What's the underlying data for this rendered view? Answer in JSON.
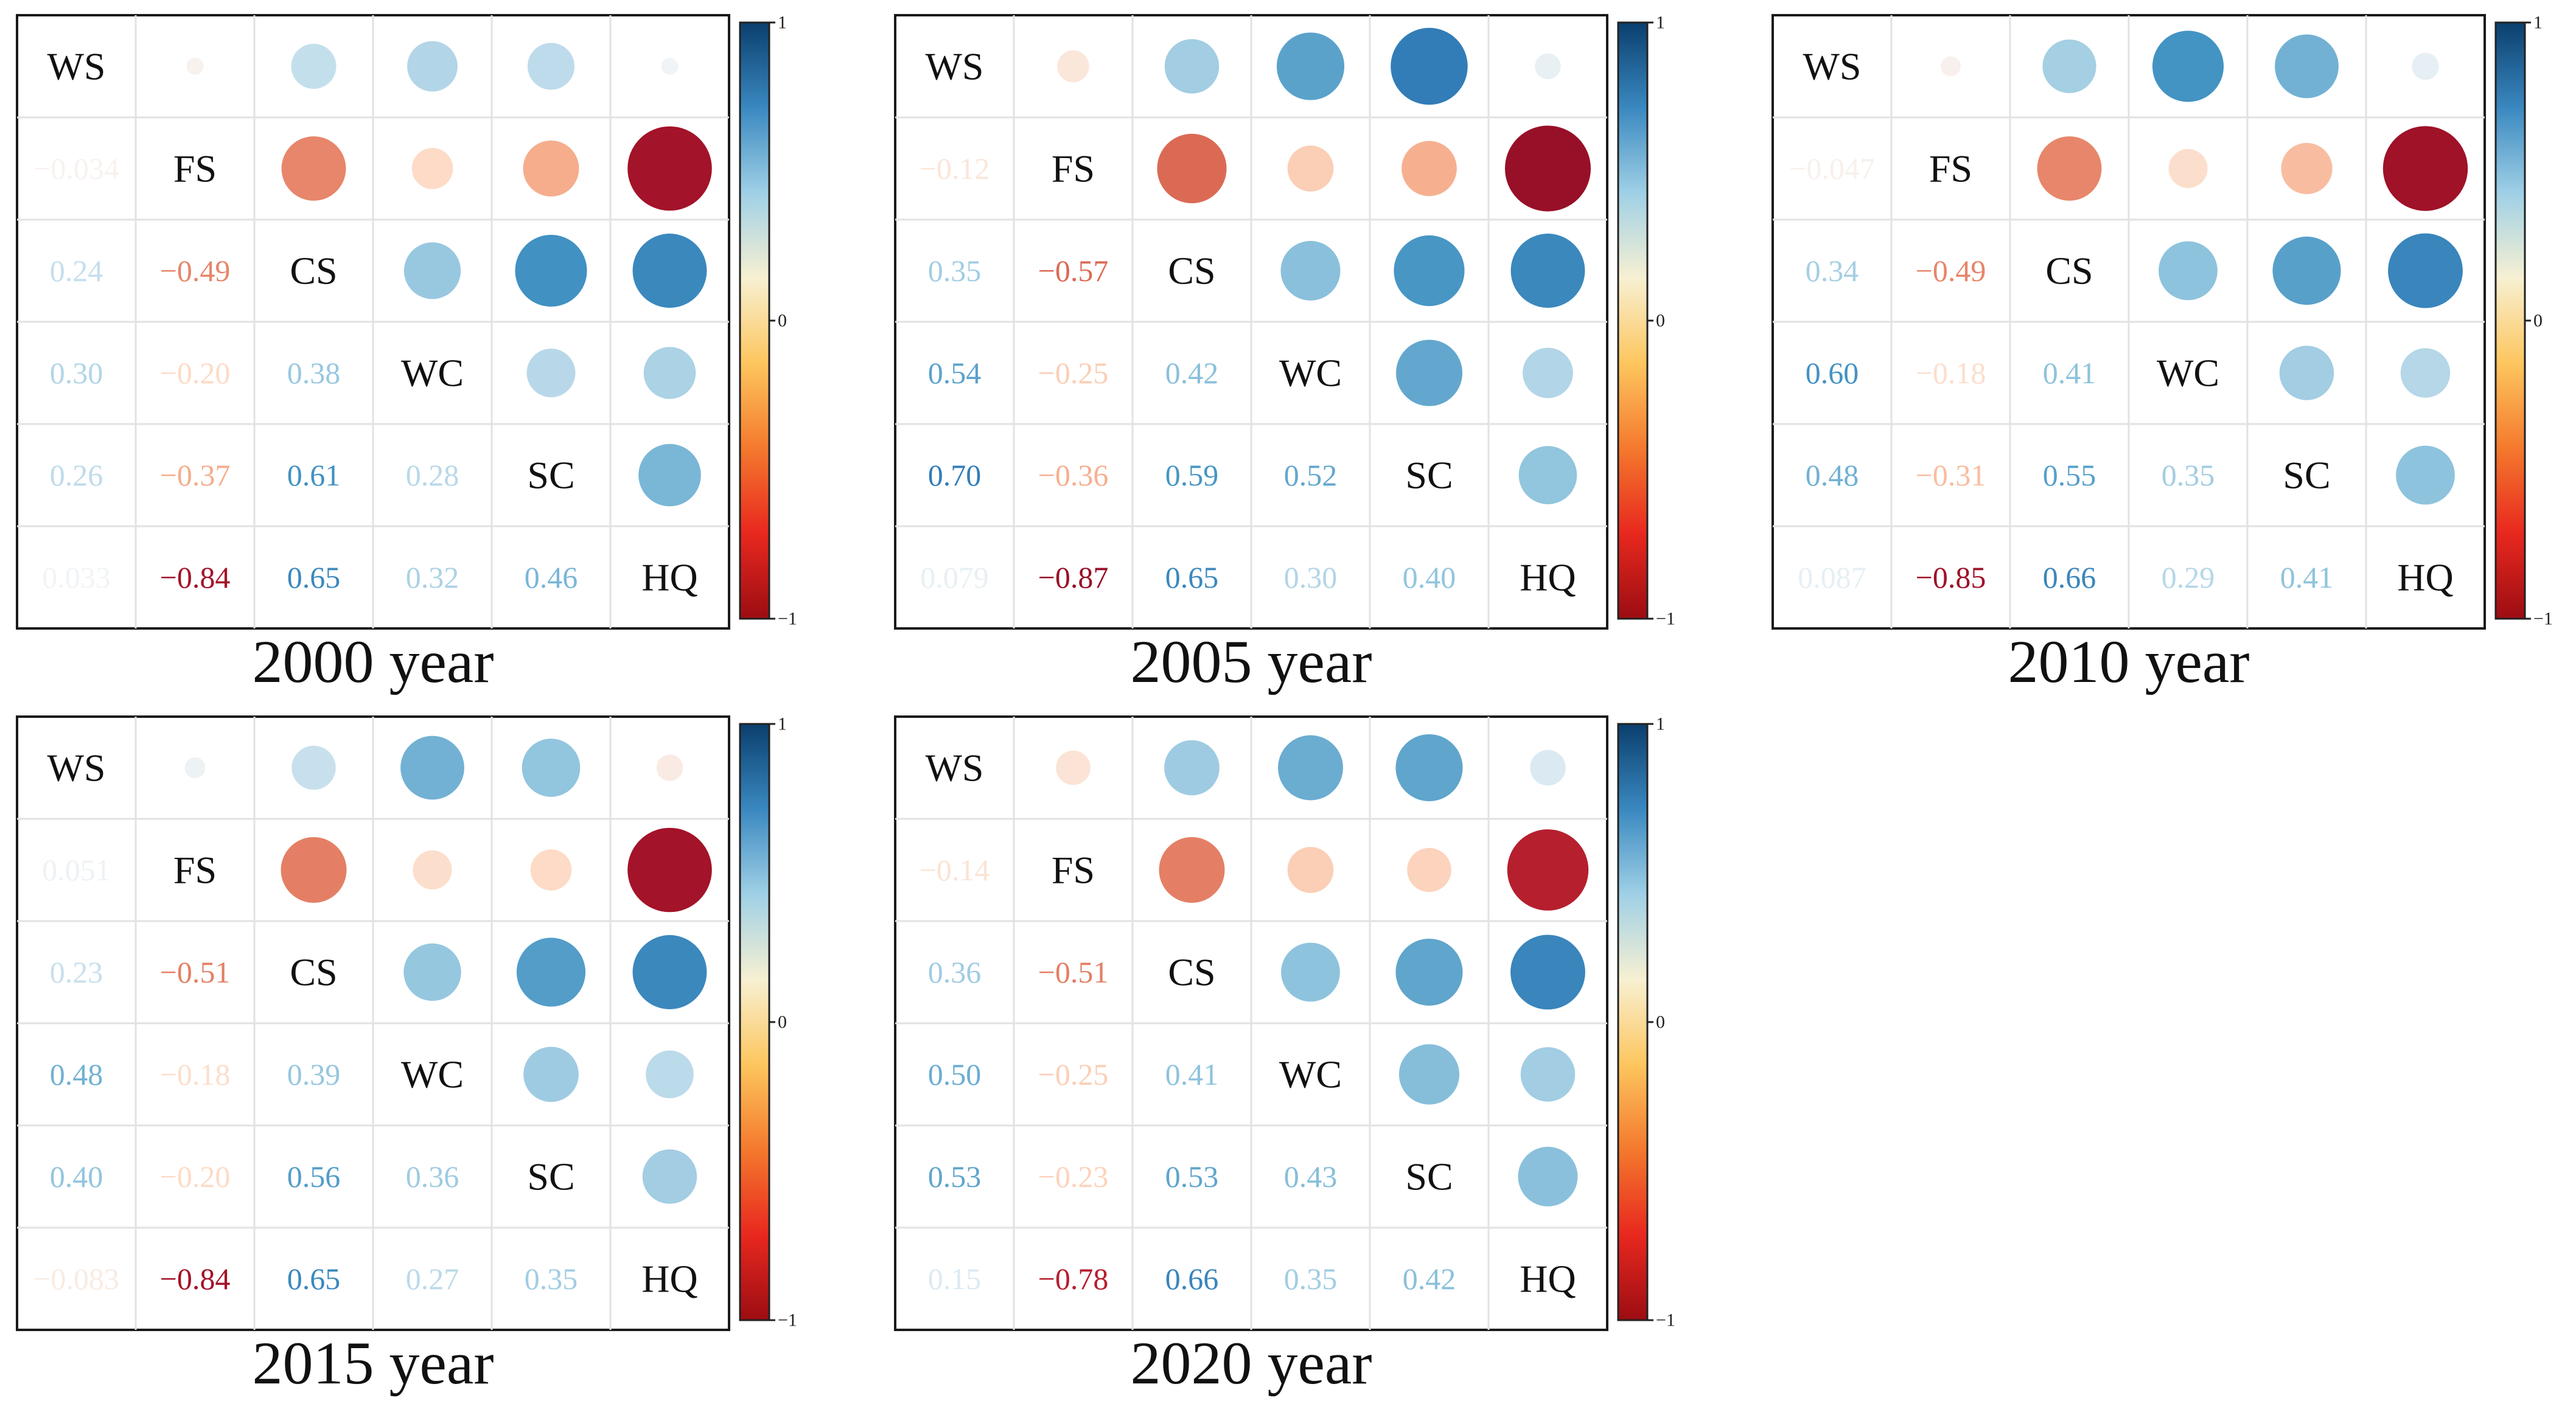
{
  "chart_data": [
    {
      "type": "heatmap",
      "title": "2000 year",
      "variables": [
        "WS",
        "FS",
        "CS",
        "WC",
        "SC",
        "HQ"
      ],
      "correlations": [
        [
          1,
          -0.034,
          0.24,
          0.3,
          0.26,
          0.033
        ],
        [
          -0.034,
          1,
          -0.49,
          -0.2,
          -0.37,
          -0.84
        ],
        [
          0.24,
          -0.49,
          1,
          0.38,
          0.61,
          0.65
        ],
        [
          0.3,
          -0.2,
          0.38,
          1,
          0.28,
          0.32
        ],
        [
          0.26,
          -0.37,
          0.61,
          0.28,
          1,
          0.46
        ],
        [
          0.033,
          -0.84,
          0.65,
          0.32,
          0.46,
          1
        ]
      ],
      "lower_labels": [
        [
          "−0.034"
        ],
        [
          "0.24",
          "−0.49"
        ],
        [
          "0.30",
          "−0.20",
          "0.38"
        ],
        [
          "0.26",
          "−0.37",
          "0.61",
          "0.28"
        ],
        [
          "0.033",
          "−0.84",
          "0.65",
          "0.32",
          "0.46"
        ]
      ],
      "colorbar": {
        "min": -1,
        "max": 1,
        "ticks": [
          "1",
          "0",
          "−1"
        ]
      }
    },
    {
      "type": "heatmap",
      "title": "2005 year",
      "variables": [
        "WS",
        "FS",
        "CS",
        "WC",
        "SC",
        "HQ"
      ],
      "correlations": [
        [
          1,
          -0.12,
          0.35,
          0.54,
          0.7,
          0.079
        ],
        [
          -0.12,
          1,
          -0.57,
          -0.25,
          -0.36,
          -0.87
        ],
        [
          0.35,
          -0.57,
          1,
          0.42,
          0.59,
          0.65
        ],
        [
          0.54,
          -0.25,
          0.42,
          1,
          0.52,
          0.3
        ],
        [
          0.7,
          -0.36,
          0.59,
          0.52,
          1,
          0.4
        ],
        [
          0.079,
          -0.87,
          0.65,
          0.3,
          0.4,
          1
        ]
      ],
      "lower_labels": [
        [
          "−0.12"
        ],
        [
          "0.35",
          "−0.57"
        ],
        [
          "0.54",
          "−0.25",
          "0.42"
        ],
        [
          "0.70",
          "−0.36",
          "0.59",
          "0.52"
        ],
        [
          "0.079",
          "−0.87",
          "0.65",
          "0.30",
          "0.40"
        ]
      ],
      "colorbar": {
        "min": -1,
        "max": 1,
        "ticks": [
          "1",
          "0",
          "−1"
        ]
      }
    },
    {
      "type": "heatmap",
      "title": "2010 year",
      "variables": [
        "WS",
        "FS",
        "CS",
        "WC",
        "SC",
        "HQ"
      ],
      "correlations": [
        [
          1,
          -0.047,
          0.34,
          0.6,
          0.48,
          0.087
        ],
        [
          -0.047,
          1,
          -0.49,
          -0.18,
          -0.31,
          -0.85
        ],
        [
          0.34,
          -0.49,
          1,
          0.41,
          0.55,
          0.66
        ],
        [
          0.6,
          -0.18,
          0.41,
          1,
          0.35,
          0.29
        ],
        [
          0.48,
          -0.31,
          0.55,
          0.35,
          1,
          0.41
        ],
        [
          0.087,
          -0.85,
          0.66,
          0.29,
          0.41,
          1
        ]
      ],
      "lower_labels": [
        [
          "−0.047"
        ],
        [
          "0.34",
          "−0.49"
        ],
        [
          "0.60",
          "−0.18",
          "0.41"
        ],
        [
          "0.48",
          "−0.31",
          "0.55",
          "0.35"
        ],
        [
          "0.087",
          "−0.85",
          "0.66",
          "0.29",
          "0.41"
        ]
      ],
      "colorbar": {
        "min": -1,
        "max": 1,
        "ticks": [
          "1",
          "0",
          "−1"
        ]
      }
    },
    {
      "type": "heatmap",
      "title": "2015 year",
      "variables": [
        "WS",
        "FS",
        "CS",
        "WC",
        "SC",
        "HQ"
      ],
      "correlations": [
        [
          1,
          0.051,
          0.23,
          0.48,
          0.4,
          -0.083
        ],
        [
          0.051,
          1,
          -0.51,
          -0.18,
          -0.2,
          -0.84
        ],
        [
          0.23,
          -0.51,
          1,
          0.39,
          0.56,
          0.65
        ],
        [
          0.48,
          -0.18,
          0.39,
          1,
          0.36,
          0.27
        ],
        [
          0.4,
          -0.2,
          0.56,
          0.36,
          1,
          0.35
        ],
        [
          -0.083,
          -0.84,
          0.65,
          0.27,
          0.35,
          1
        ]
      ],
      "lower_labels": [
        [
          "0.051"
        ],
        [
          "0.23",
          "−0.51"
        ],
        [
          "0.48",
          "−0.18",
          "0.39"
        ],
        [
          "0.40",
          "−0.20",
          "0.56",
          "0.36"
        ],
        [
          "−0.083",
          "−0.84",
          "0.65",
          "0.27",
          "0.35"
        ]
      ],
      "colorbar": {
        "min": -1,
        "max": 1,
        "ticks": [
          "1",
          "0",
          "−1"
        ]
      }
    },
    {
      "type": "heatmap",
      "title": "2020 year",
      "variables": [
        "WS",
        "FS",
        "CS",
        "WC",
        "SC",
        "HQ"
      ],
      "correlations": [
        [
          1,
          -0.14,
          0.36,
          0.5,
          0.53,
          0.15
        ],
        [
          -0.14,
          1,
          -0.51,
          -0.25,
          -0.23,
          -0.78
        ],
        [
          0.36,
          -0.51,
          1,
          0.41,
          0.53,
          0.66
        ],
        [
          0.5,
          -0.25,
          0.41,
          1,
          0.43,
          0.35
        ],
        [
          0.53,
          -0.23,
          0.53,
          0.43,
          1,
          0.42
        ],
        [
          0.15,
          -0.78,
          0.66,
          0.35,
          0.42,
          1
        ]
      ],
      "lower_labels": [
        [
          "−0.14"
        ],
        [
          "0.36",
          "−0.51"
        ],
        [
          "0.50",
          "−0.25",
          "0.41"
        ],
        [
          "0.53",
          "−0.23",
          "0.53",
          "0.43"
        ],
        [
          "0.15",
          "−0.78",
          "0.66",
          "0.35",
          "0.42"
        ]
      ],
      "colorbar": {
        "min": -1,
        "max": 1,
        "ticks": [
          "1",
          "0",
          "−1"
        ]
      }
    }
  ],
  "colors": {
    "scale": [
      "#67001f",
      "#b2182b",
      "#d6604d",
      "#f4a582",
      "#fddbc7",
      "#f7f7f7",
      "#d1e5f0",
      "#92c5de",
      "#4393c3",
      "#2166ac",
      "#053061"
    ],
    "palette_order": "negative-to-positive",
    "cbar_stops": [
      "#0a3f6e",
      "#3a88c0",
      "#9fd0e6",
      "#f7f0d2",
      "#fdc65e",
      "#f4792d",
      "#e8281f",
      "#9c0d12"
    ]
  }
}
